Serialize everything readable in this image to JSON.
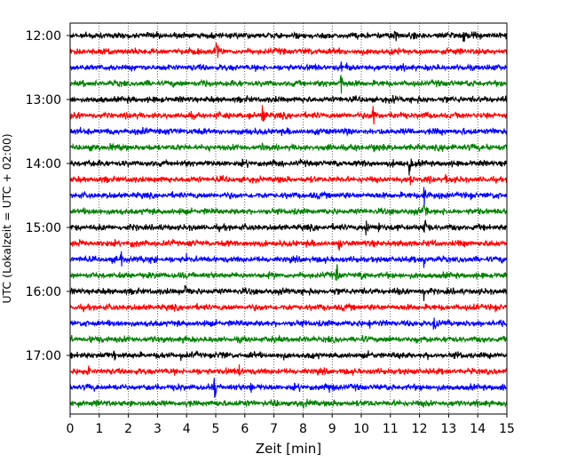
{
  "chart_data": {
    "type": "line",
    "title": "",
    "xlabel": "Zeit  [min]",
    "ylabel": "UTC (Lokalzeit = UTC + 02:00)",
    "xlim": [
      0,
      15
    ],
    "x_ticks": [
      0,
      1,
      2,
      3,
      4,
      5,
      6,
      7,
      8,
      9,
      10,
      11,
      12,
      13,
      14,
      15
    ],
    "x_tick_labels": [
      "0",
      "1",
      "2",
      "3",
      "4",
      "5",
      "6",
      "7",
      "8",
      "9",
      "10",
      "11",
      "12",
      "13",
      "14",
      "15"
    ],
    "y_tick_labels": [
      "12:00",
      "13:00",
      "14:00",
      "15:00",
      "16:00",
      "17:00"
    ],
    "row_minutes": 15,
    "grid": "vertical dotted",
    "color_cycle": [
      "#000000",
      "#ff0000",
      "#0000ff",
      "#008000"
    ],
    "series": [
      {
        "start": "12:00",
        "color": "#000000",
        "events": [
          [
            11.15,
            14
          ],
          [
            13.5,
            8
          ]
        ]
      },
      {
        "start": "12:15",
        "color": "#ff0000",
        "events": [
          [
            1.3,
            5
          ],
          [
            5.0,
            16
          ]
        ]
      },
      {
        "start": "12:30",
        "color": "#0000ff",
        "events": [
          [
            9.3,
            9
          ],
          [
            9.5,
            4
          ]
        ]
      },
      {
        "start": "12:45",
        "color": "#008000",
        "events": [
          [
            4.55,
            9
          ],
          [
            9.3,
            14
          ]
        ]
      },
      {
        "start": "13:00",
        "color": "#000000",
        "events": [
          [
            11.1,
            8
          ]
        ]
      },
      {
        "start": "13:15",
        "color": "#ff0000",
        "events": [
          [
            6.6,
            14
          ],
          [
            10.4,
            14
          ]
        ]
      },
      {
        "start": "13:30",
        "color": "#0000ff",
        "events": [
          [
            2.5,
            5
          ],
          [
            6.05,
            8
          ]
        ]
      },
      {
        "start": "13:45",
        "color": "#008000",
        "events": [
          [
            1.4,
            4
          ],
          [
            6.6,
            7
          ],
          [
            10.4,
            9
          ],
          [
            13.1,
            7
          ],
          [
            14.3,
            7
          ]
        ]
      },
      {
        "start": "14:00",
        "color": "#000000",
        "events": [
          [
            0.6,
            4
          ],
          [
            11.65,
            14
          ]
        ]
      },
      {
        "start": "14:15",
        "color": "#ff0000",
        "events": [
          [
            11.7,
            8
          ],
          [
            12.9,
            7
          ]
        ]
      },
      {
        "start": "14:30",
        "color": "#0000ff",
        "events": [
          [
            12.15,
            14
          ]
        ]
      },
      {
        "start": "14:45",
        "color": "#008000",
        "events": [
          [
            12.15,
            14
          ]
        ]
      },
      {
        "start": "15:00",
        "color": "#000000",
        "events": [
          [
            10.15,
            12
          ],
          [
            10.6,
            9
          ],
          [
            12.15,
            14
          ],
          [
            14.95,
            6
          ]
        ]
      },
      {
        "start": "15:15",
        "color": "#ff0000",
        "events": [
          [
            0.3,
            5
          ],
          [
            9.2,
            8
          ]
        ]
      },
      {
        "start": "15:30",
        "color": "#0000ff",
        "events": [
          [
            1.75,
            14
          ],
          [
            2.9,
            6
          ],
          [
            4.0,
            7
          ],
          [
            12.15,
            10
          ]
        ]
      },
      {
        "start": "15:45",
        "color": "#008000",
        "events": [
          [
            9.15,
            15
          ],
          [
            10.0,
            5
          ]
        ]
      },
      {
        "start": "16:00",
        "color": "#000000",
        "events": [
          [
            3.95,
            12
          ],
          [
            12.15,
            9
          ]
        ]
      },
      {
        "start": "16:15",
        "color": "#ff0000",
        "events": [
          [
            13.9,
            5
          ]
        ]
      },
      {
        "start": "16:30",
        "color": "#0000ff",
        "events": [
          [
            10.3,
            6
          ],
          [
            12.5,
            14
          ]
        ]
      },
      {
        "start": "16:45",
        "color": "#008000",
        "events": [
          [
            1.3,
            5
          ],
          [
            11.9,
            5
          ]
        ]
      },
      {
        "start": "17:00",
        "color": "#000000",
        "events": [
          [
            1.5,
            7
          ],
          [
            3.8,
            4
          ]
        ]
      },
      {
        "start": "17:15",
        "color": "#ff0000",
        "events": [
          [
            0.6,
            8
          ],
          [
            5.8,
            8
          ]
        ]
      },
      {
        "start": "17:30",
        "color": "#0000ff",
        "events": [
          [
            4.95,
            14
          ],
          [
            6.2,
            9
          ],
          [
            8.9,
            8
          ],
          [
            14.8,
            5
          ]
        ]
      },
      {
        "start": "17:45",
        "color": "#008000",
        "events": [
          [
            2.1,
            5
          ],
          [
            8.0,
            5
          ]
        ]
      }
    ]
  }
}
